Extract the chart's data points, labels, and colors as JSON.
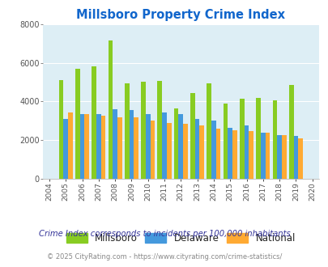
{
  "title": "Millsboro Property Crime Index",
  "years": [
    2004,
    2005,
    2006,
    2007,
    2008,
    2009,
    2010,
    2011,
    2012,
    2013,
    2014,
    2015,
    2016,
    2017,
    2018,
    2019,
    2020
  ],
  "millsboro": [
    null,
    5100,
    5700,
    5800,
    7150,
    4950,
    5000,
    5050,
    3650,
    4450,
    4950,
    3900,
    4150,
    4200,
    4050,
    4850,
    null
  ],
  "delaware": [
    null,
    3100,
    3350,
    3350,
    3600,
    3550,
    3350,
    3450,
    3350,
    3100,
    3000,
    2650,
    2750,
    2400,
    2250,
    2200,
    null
  ],
  "national": [
    null,
    3450,
    3350,
    3250,
    3200,
    3200,
    3000,
    2900,
    2850,
    2750,
    2600,
    2500,
    2450,
    2400,
    2250,
    2100,
    null
  ],
  "millsboro_color": "#88cc22",
  "delaware_color": "#4499dd",
  "national_color": "#ffaa33",
  "plot_bg": "#ddeef5",
  "ylim": [
    0,
    8000
  ],
  "yticks": [
    0,
    2000,
    4000,
    6000,
    8000
  ],
  "title_color": "#1166cc",
  "legend_labels": [
    "Millsboro",
    "Delaware",
    "National"
  ],
  "footnote1": "Crime Index corresponds to incidents per 100,000 inhabitants",
  "footnote2": "© 2025 CityRating.com - https://www.cityrating.com/crime-statistics/",
  "footnote1_color": "#333399",
  "footnote2_color": "#888888"
}
